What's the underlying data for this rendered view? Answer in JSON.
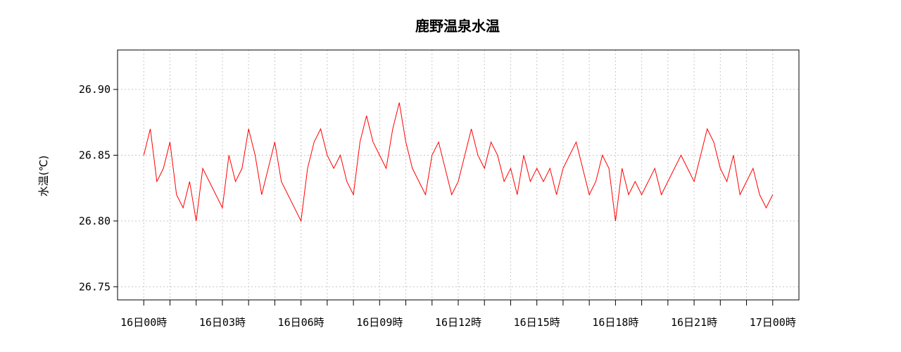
{
  "chart_data": {
    "type": "line",
    "title": "鹿野温泉水温",
    "xlabel": "",
    "ylabel": "水温(℃)",
    "x_tick_labels": [
      "16日00時",
      "16日03時",
      "16日06時",
      "16日09時",
      "16日12時",
      "16日15時",
      "16日18時",
      "16日21時",
      "17日00時"
    ],
    "x_tick_hours": [
      0,
      3,
      6,
      9,
      12,
      15,
      18,
      21,
      24
    ],
    "x_minor_tick_hours": [
      0,
      1,
      2,
      3,
      4,
      5,
      6,
      7,
      8,
      9,
      10,
      11,
      12,
      13,
      14,
      15,
      16,
      17,
      18,
      19,
      20,
      21,
      22,
      23,
      24
    ],
    "y_ticks": [
      26.75,
      26.8,
      26.85,
      26.9
    ],
    "y_tick_labels": [
      "26.75",
      "26.80",
      "26.85",
      "26.90"
    ],
    "xlim": [
      -1,
      25
    ],
    "ylim": [
      26.74,
      26.93
    ],
    "grid": true,
    "series": [
      {
        "color": "#ff0000",
        "x_hours": [
          0,
          0.25,
          0.5,
          0.75,
          1,
          1.25,
          1.5,
          1.75,
          2,
          2.25,
          2.5,
          2.75,
          3,
          3.25,
          3.5,
          3.75,
          4,
          4.25,
          4.5,
          4.75,
          5,
          5.25,
          5.5,
          5.75,
          6,
          6.25,
          6.5,
          6.75,
          7,
          7.25,
          7.5,
          7.75,
          8,
          8.25,
          8.5,
          8.75,
          9,
          9.25,
          9.5,
          9.75,
          10,
          10.25,
          10.5,
          10.75,
          11,
          11.25,
          11.5,
          11.75,
          12,
          12.25,
          12.5,
          12.75,
          13,
          13.25,
          13.5,
          13.75,
          14,
          14.25,
          14.5,
          14.75,
          15,
          15.25,
          15.5,
          15.75,
          16,
          16.25,
          16.5,
          16.75,
          17,
          17.25,
          17.5,
          17.75,
          18,
          18.25,
          18.5,
          18.75,
          19,
          19.25,
          19.5,
          19.75,
          20,
          20.25,
          20.5,
          20.75,
          21,
          21.25,
          21.5,
          21.75,
          22,
          22.25,
          22.5,
          22.75,
          23,
          23.25,
          23.5,
          23.75,
          24
        ],
        "values": [
          26.85,
          26.87,
          26.83,
          26.84,
          26.86,
          26.82,
          26.81,
          26.83,
          26.8,
          26.84,
          26.83,
          26.82,
          26.81,
          26.85,
          26.83,
          26.84,
          26.87,
          26.85,
          26.82,
          26.84,
          26.86,
          26.83,
          26.82,
          26.81,
          26.8,
          26.84,
          26.86,
          26.87,
          26.85,
          26.84,
          26.85,
          26.83,
          26.82,
          26.86,
          26.88,
          26.86,
          26.85,
          26.84,
          26.87,
          26.89,
          26.86,
          26.84,
          26.83,
          26.82,
          26.85,
          26.86,
          26.84,
          26.82,
          26.83,
          26.85,
          26.87,
          26.85,
          26.84,
          26.86,
          26.85,
          26.83,
          26.84,
          26.82,
          26.85,
          26.83,
          26.84,
          26.83,
          26.84,
          26.82,
          26.84,
          26.85,
          26.86,
          26.84,
          26.82,
          26.83,
          26.85,
          26.84,
          26.8,
          26.84,
          26.82,
          26.83,
          26.82,
          26.83,
          26.84,
          26.82,
          26.83,
          26.84,
          26.85,
          26.84,
          26.83,
          26.85,
          26.87,
          26.86,
          26.84,
          26.83,
          26.85,
          26.82,
          26.83,
          26.84,
          26.82,
          26.81,
          26.82
        ]
      }
    ]
  }
}
